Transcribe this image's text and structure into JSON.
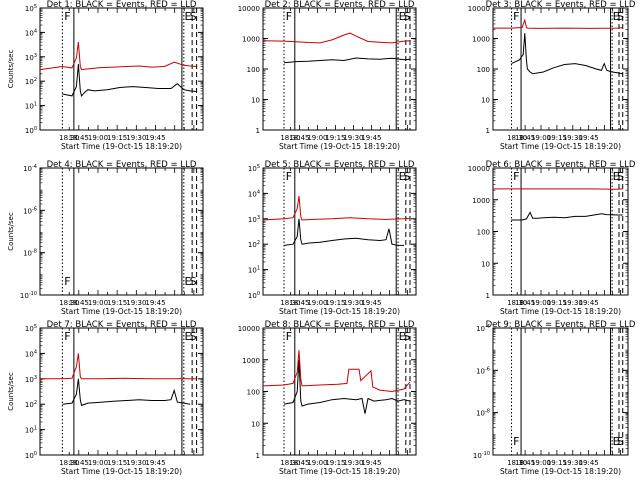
{
  "window": {
    "size_label": "640x480"
  },
  "colors": {
    "events": "#000000",
    "lld": "#cc0000",
    "axis": "#000000",
    "background": "#ffffff"
  },
  "chart_data": [
    {
      "type": "line",
      "panel": 1,
      "title": "Det 1: BLACK = Events, RED = LLD",
      "xlabel": "Start Time (19-Oct-15 18:19:20)",
      "ylabel": "Counts/sec",
      "log_y": true,
      "ylim": [
        1,
        100000
      ],
      "xlim_minutes": [
        -35,
        220
      ],
      "xticks": [
        "18:30",
        "18:45",
        "19:00",
        "19:15",
        "19:30",
        "19:45"
      ],
      "yticks": [
        "10^0",
        "10^1",
        "10^2",
        "10^3",
        "10^4",
        "10^5"
      ],
      "markers": [
        {
          "text": "F"
        },
        {
          "text": "E"
        },
        {
          "text": "S"
        }
      ],
      "series": [
        {
          "name": "BLACK = Events",
          "x": [
            0,
            15,
            22,
            25,
            28,
            30,
            35,
            40,
            50,
            70,
            90,
            110,
            130,
            150,
            170,
            180,
            190,
            200,
            210
          ],
          "y": [
            30,
            25,
            60,
            500,
            40,
            25,
            35,
            45,
            40,
            45,
            55,
            60,
            55,
            50,
            50,
            80,
            45,
            40,
            38
          ]
        },
        {
          "name": "RED = LLD",
          "x": [
            -35,
            0,
            15,
            22,
            25,
            28,
            30,
            40,
            60,
            80,
            100,
            120,
            140,
            160,
            175,
            190,
            200,
            210
          ],
          "y": [
            300,
            400,
            350,
            900,
            4000,
            400,
            300,
            320,
            360,
            380,
            400,
            420,
            380,
            400,
            600,
            450,
            420,
            400
          ]
        }
      ]
    },
    {
      "type": "line",
      "panel": 2,
      "title": "Det 2: BLACK = Events, RED = LLD",
      "xlabel": "Start Time (19-Oct-15 18:19:20)",
      "ylabel": "",
      "log_y": true,
      "ylim": [
        1,
        10000
      ],
      "xlim_minutes": [
        -35,
        220
      ],
      "xticks": [
        "18:30",
        "18:45",
        "19:00",
        "19:15",
        "19:30",
        "19:45"
      ],
      "yticks": [
        "1",
        "10",
        "100",
        "1000",
        "10000"
      ],
      "markers": [
        {
          "text": "F"
        },
        {
          "text": "E"
        },
        {
          "text": "S"
        }
      ],
      "series": [
        {
          "name": "BLACK = Events",
          "x": [
            0,
            20,
            40,
            60,
            80,
            100,
            120,
            140,
            160,
            180,
            200,
            210
          ],
          "y": [
            160,
            175,
            180,
            190,
            200,
            190,
            230,
            215,
            210,
            225,
            200,
            210
          ]
        },
        {
          "name": "RED = LLD",
          "x": [
            -35,
            0,
            20,
            40,
            60,
            80,
            100,
            110,
            120,
            140,
            160,
            180,
            200,
            210
          ],
          "y": [
            850,
            820,
            780,
            740,
            720,
            900,
            1300,
            1500,
            1200,
            800,
            750,
            720,
            820,
            850
          ]
        }
      ]
    },
    {
      "type": "line",
      "panel": 3,
      "title": "Det 3: BLACK = Events, RED = LLD",
      "xlabel": "Start Time (19-Oct-15 18:19:20)",
      "ylabel": "",
      "log_y": true,
      "ylim": [
        1,
        10000
      ],
      "xlim_minutes": [
        -35,
        220
      ],
      "xticks": [
        "18:30",
        "18:45",
        "19:00",
        "19:15",
        "19:30",
        "19:45"
      ],
      "yticks": [
        "1",
        "10",
        "100",
        "1000",
        "10000"
      ],
      "markers": [
        {
          "text": "F"
        },
        {
          "text": "E"
        },
        {
          "text": "S"
        }
      ],
      "series": [
        {
          "name": "BLACK = Events",
          "x": [
            0,
            15,
            22,
            25,
            28,
            30,
            35,
            40,
            60,
            80,
            100,
            120,
            140,
            160,
            170,
            175,
            180,
            190,
            200,
            210
          ],
          "y": [
            150,
            200,
            300,
            1500,
            200,
            100,
            80,
            70,
            80,
            110,
            140,
            150,
            130,
            100,
            90,
            150,
            90,
            80,
            75,
            70
          ]
        },
        {
          "name": "RED = LLD",
          "x": [
            -35,
            0,
            20,
            25,
            28,
            30,
            50,
            100,
            150,
            200,
            210
          ],
          "y": [
            2200,
            2200,
            2300,
            4000,
            2300,
            2200,
            2150,
            2200,
            2150,
            2200,
            2250
          ]
        }
      ]
    },
    {
      "type": "line",
      "panel": 4,
      "title": "Det 4: BLACK = Events, RED = LLD",
      "xlabel": "Start Time (19-Oct-15 18:19:20)",
      "ylabel": "Counts/sec",
      "log_y": true,
      "ylim": [
        1e-10,
        0.0001
      ],
      "xlim_minutes": [
        -35,
        220
      ],
      "xticks": [
        "18:30",
        "18:45",
        "19:00",
        "19:15",
        "19:30",
        "19:45"
      ],
      "yticks": [
        "10^-10",
        "10^-8",
        "10^-6",
        "10^-4"
      ],
      "markers": [
        {
          "text": "F"
        },
        {
          "text": "E"
        },
        {
          "text": "S"
        }
      ],
      "series": []
    },
    {
      "type": "line",
      "panel": 5,
      "title": "Det 5: BLACK = Events, RED = LLD",
      "xlabel": "Start Time (19-Oct-15 18:19:20)",
      "ylabel": "",
      "log_y": true,
      "ylim": [
        1,
        100000
      ],
      "xlim_minutes": [
        -35,
        220
      ],
      "xticks": [
        "18:30",
        "18:45",
        "19:00",
        "19:15",
        "19:30",
        "19:45"
      ],
      "yticks": [
        "10^0",
        "10^1",
        "10^2",
        "10^3",
        "10^4",
        "10^5"
      ],
      "markers": [
        {
          "text": "F"
        },
        {
          "text": "E"
        },
        {
          "text": "S"
        }
      ],
      "series": [
        {
          "name": "BLACK = Events",
          "x": [
            0,
            15,
            22,
            25,
            28,
            30,
            40,
            60,
            80,
            100,
            120,
            140,
            160,
            170,
            175,
            180,
            190,
            200
          ],
          "y": [
            90,
            100,
            200,
            1000,
            150,
            100,
            110,
            120,
            140,
            160,
            170,
            150,
            140,
            150,
            400,
            100,
            90,
            90
          ]
        },
        {
          "name": "RED = LLD",
          "x": [
            -35,
            0,
            15,
            22,
            25,
            28,
            30,
            50,
            80,
            110,
            140,
            170,
            200,
            210
          ],
          "y": [
            900,
            1000,
            1100,
            2500,
            8000,
            1200,
            900,
            950,
            1000,
            1100,
            1000,
            950,
            1000,
            1050
          ]
        }
      ]
    },
    {
      "type": "line",
      "panel": 6,
      "title": "Det 6: BLACK = Events, RED = LLD",
      "xlabel": "Start Time (19-Oct-15 18:19:20)",
      "ylabel": "",
      "log_y": true,
      "ylim": [
        1,
        10000
      ],
      "xlim_minutes": [
        -35,
        220
      ],
      "xticks": [
        "18:30",
        "18:45",
        "19:00",
        "19:15",
        "19:30",
        "19:45"
      ],
      "yticks": [
        "1",
        "10",
        "100",
        "1000",
        "10000"
      ],
      "markers": [
        {
          "text": "F"
        },
        {
          "text": "E"
        },
        {
          "text": "S"
        }
      ],
      "series": [
        {
          "name": "BLACK = Events",
          "x": [
            0,
            20,
            28,
            35,
            40,
            50,
            60,
            80,
            100,
            120,
            140,
            160,
            170,
            180,
            200,
            210
          ],
          "y": [
            230,
            230,
            250,
            400,
            260,
            260,
            270,
            280,
            270,
            300,
            300,
            340,
            360,
            340,
            330,
            330
          ]
        },
        {
          "name": "RED = LLD",
          "x": [
            -35,
            0,
            50,
            100,
            150,
            200,
            210
          ],
          "y": [
            2200,
            2200,
            2200,
            2200,
            2200,
            2150,
            2200
          ]
        }
      ]
    },
    {
      "type": "line",
      "panel": 7,
      "title": "Det 7: BLACK = Events, RED = LLD",
      "xlabel": "Start Time (19-Oct-15 18:19:20)",
      "ylabel": "Counts/sec",
      "log_y": true,
      "ylim": [
        1,
        100000
      ],
      "xlim_minutes": [
        -35,
        220
      ],
      "xticks": [
        "18:30",
        "18:45",
        "19:00",
        "19:15",
        "19:30",
        "19:45"
      ],
      "yticks": [
        "10^0",
        "10^1",
        "10^2",
        "10^3",
        "10^4",
        "10^5"
      ],
      "markers": [
        {
          "text": "F"
        },
        {
          "text": "E"
        },
        {
          "text": "S"
        }
      ],
      "series": [
        {
          "name": "BLACK = Events",
          "x": [
            0,
            15,
            22,
            25,
            28,
            30,
            40,
            60,
            80,
            100,
            120,
            140,
            160,
            170,
            175,
            180,
            190,
            200
          ],
          "y": [
            100,
            110,
            250,
            1000,
            150,
            90,
            110,
            120,
            130,
            140,
            150,
            140,
            140,
            150,
            350,
            120,
            110,
            100
          ]
        },
        {
          "name": "RED = LLD",
          "x": [
            -35,
            0,
            15,
            22,
            25,
            28,
            30,
            60,
            100,
            140,
            180,
            210
          ],
          "y": [
            1000,
            1000,
            1050,
            3000,
            10000,
            1200,
            1000,
            1000,
            1050,
            1000,
            1000,
            1000
          ]
        }
      ]
    },
    {
      "type": "line",
      "panel": 8,
      "title": "Det 8: BLACK = Events, RED = LLD",
      "xlabel": "Start Time (19-Oct-15 18:19:20)",
      "ylabel": "",
      "log_y": true,
      "ylim": [
        1,
        10000
      ],
      "xlim_minutes": [
        -35,
        220
      ],
      "xticks": [
        "18:30",
        "18:45",
        "19:00",
        "19:15",
        "19:30",
        "19:45"
      ],
      "yticks": [
        "1",
        "10",
        "100",
        "1000",
        "10000"
      ],
      "markers": [
        {
          "text": "F"
        },
        {
          "text": "E"
        },
        {
          "text": "S"
        }
      ],
      "series": [
        {
          "name": "BLACK = Events",
          "x": [
            0,
            15,
            22,
            25,
            28,
            30,
            40,
            60,
            80,
            100,
            120,
            130,
            135,
            140,
            150,
            170,
            180,
            190,
            200,
            210
          ],
          "y": [
            40,
            45,
            100,
            1000,
            50,
            35,
            40,
            45,
            55,
            60,
            55,
            60,
            20,
            60,
            50,
            55,
            60,
            50,
            55,
            50
          ]
        },
        {
          "name": "RED = LLD",
          "x": [
            -35,
            0,
            15,
            22,
            25,
            28,
            30,
            60,
            90,
            105,
            108,
            125,
            128,
            145,
            148,
            160,
            180,
            200,
            210
          ],
          "y": [
            150,
            160,
            180,
            400,
            2000,
            250,
            150,
            160,
            170,
            180,
            500,
            500,
            220,
            450,
            140,
            110,
            100,
            120,
            200
          ]
        }
      ]
    },
    {
      "type": "line",
      "panel": 9,
      "title": "Det 9: BLACK = Events, RED = LLD",
      "xlabel": "Start Time (19-Oct-15 18:19:20)",
      "ylabel": "",
      "log_y": true,
      "ylim": [
        1e-10,
        0.0001
      ],
      "xlim_minutes": [
        -35,
        220
      ],
      "xticks": [
        "18:30",
        "18:45",
        "19:00",
        "19:15",
        "19:30",
        "19:45"
      ],
      "yticks": [
        "10^-10",
        "10^-8",
        "10^-6",
        "10^-4"
      ],
      "markers": [
        {
          "text": "F"
        },
        {
          "text": "E"
        },
        {
          "text": "S"
        }
      ],
      "series": []
    }
  ]
}
